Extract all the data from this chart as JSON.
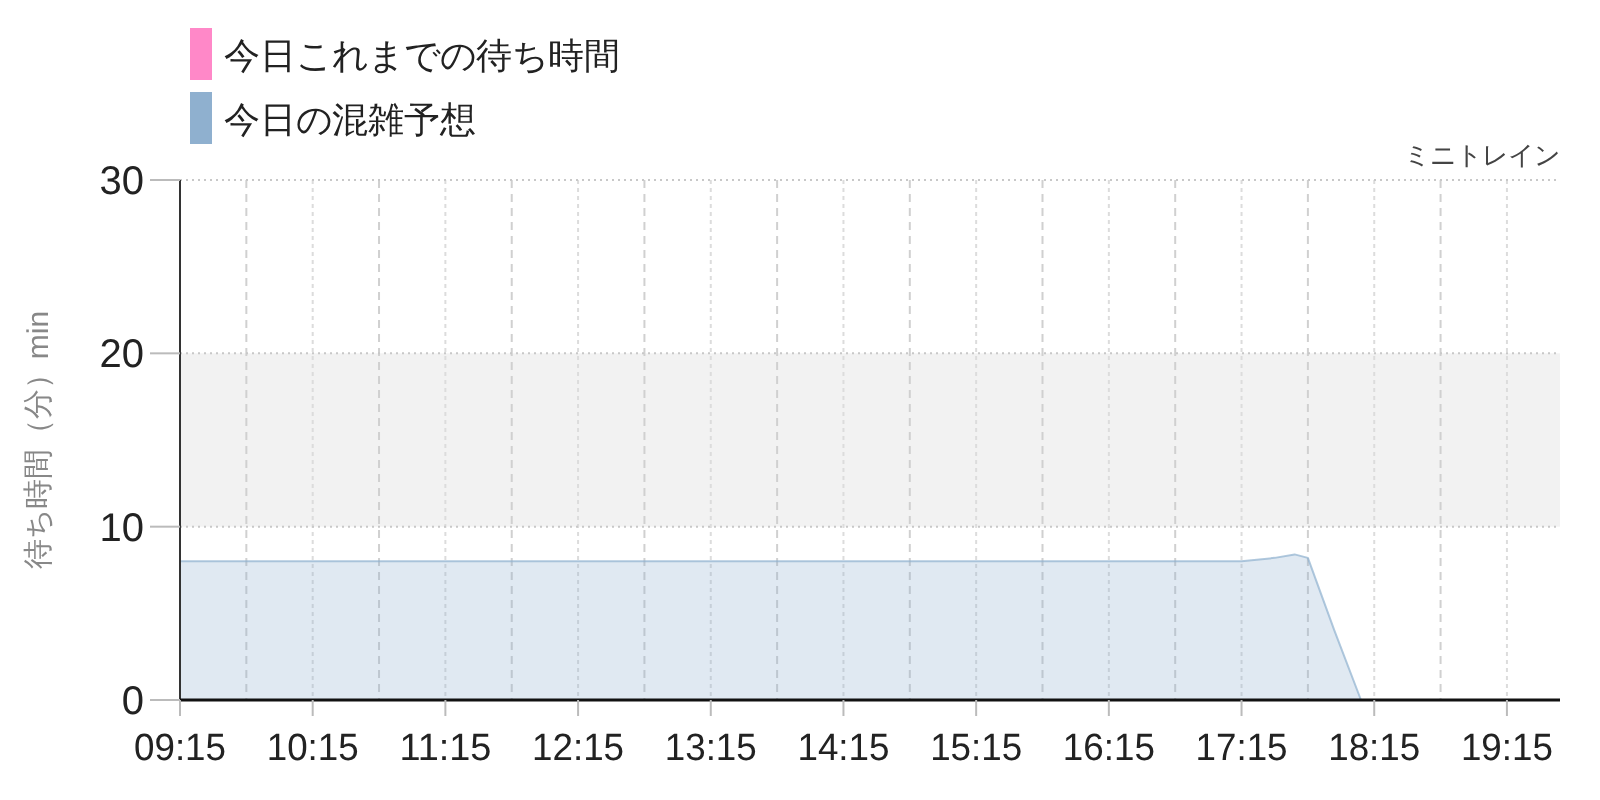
{
  "chart_data": {
    "type": "area",
    "title": "ミニトレイン",
    "ylabel": "待ち時間（分）min",
    "series": [
      {
        "name": "今日これまでの待ち時間",
        "color": "#ff88c8"
      },
      {
        "name": "今日の混雑予想",
        "color": "#8fb0cf",
        "x": [
          9.25,
          10,
          11,
          12,
          13,
          14,
          15,
          16,
          17,
          17.25,
          17.5,
          17.65,
          17.75,
          17.95,
          18.15,
          18.5,
          19,
          19.65
        ],
        "values": [
          8,
          8,
          8,
          8,
          8,
          8,
          8,
          8,
          8,
          8,
          8.2,
          8.4,
          8.2,
          4,
          0,
          0,
          0,
          0
        ]
      }
    ],
    "xlim": [
      9.25,
      19.65
    ],
    "xticks": [
      {
        "value": 9.25,
        "label": "09:15"
      },
      {
        "value": 9.75,
        "label": null
      },
      {
        "value": 10.25,
        "label": "10:15"
      },
      {
        "value": 10.75,
        "label": null
      },
      {
        "value": 11.25,
        "label": "11:15"
      },
      {
        "value": 11.75,
        "label": null
      },
      {
        "value": 12.25,
        "label": "12:15"
      },
      {
        "value": 12.75,
        "label": null
      },
      {
        "value": 13.25,
        "label": "13:15"
      },
      {
        "value": 13.75,
        "label": null
      },
      {
        "value": 14.25,
        "label": "14:15"
      },
      {
        "value": 14.75,
        "label": null
      },
      {
        "value": 15.25,
        "label": "15:15"
      },
      {
        "value": 15.75,
        "label": null
      },
      {
        "value": 16.25,
        "label": "16:15"
      },
      {
        "value": 16.75,
        "label": null
      },
      {
        "value": 17.25,
        "label": "17:15"
      },
      {
        "value": 17.75,
        "label": null
      },
      {
        "value": 18.25,
        "label": "18:15"
      },
      {
        "value": 18.75,
        "label": null
      },
      {
        "value": 19.25,
        "label": "19:15"
      }
    ],
    "ylim": [
      0,
      30
    ],
    "yticks": [
      0,
      10,
      20,
      30
    ],
    "bands": [
      {
        "axis": "y",
        "from": 10,
        "to": 20,
        "color": "#f2f2f2"
      }
    ],
    "grid": true,
    "legend": "top left"
  }
}
